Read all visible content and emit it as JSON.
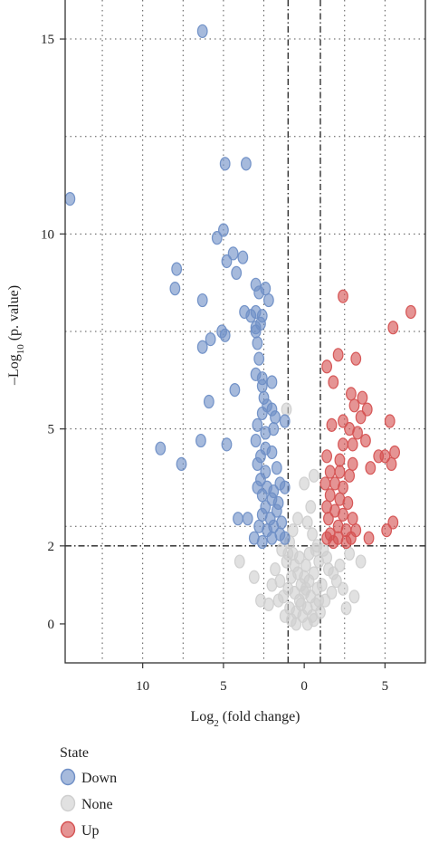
{
  "chart_data": {
    "type": "scatter",
    "title": "",
    "xlabel": {
      "prefix": "Log",
      "sub": "2",
      "suffix": " (fold change)"
    },
    "ylabel": {
      "prefix": "–Log",
      "sub": "10",
      "suffix": " (p. value)"
    },
    "x_reversed_display": true,
    "xlim": [
      -14.8,
      7.5
    ],
    "ylim": [
      -1.0,
      16.0
    ],
    "x_ticks": [
      {
        "value": -10,
        "label": "10"
      },
      {
        "value": -5,
        "label": "5"
      },
      {
        "value": 0,
        "label": "0"
      },
      {
        "value": 5,
        "label": "5"
      }
    ],
    "y_ticks": [
      {
        "value": 0,
        "label": "0"
      },
      {
        "value": 2,
        "label": "2"
      },
      {
        "value": 5,
        "label": "5"
      },
      {
        "value": 10,
        "label": "10"
      },
      {
        "value": 15,
        "label": "15"
      }
    ],
    "grid": true,
    "grid_style": "dotted",
    "thresholds": {
      "x": [
        -1,
        1
      ],
      "y": 2,
      "style": "dash-dot"
    },
    "legend": {
      "title": "State",
      "placement": "bottom-left",
      "entries": [
        {
          "label": "Down",
          "color": "#6f8fc6"
        },
        {
          "label": "None",
          "color": "#cfcfcf"
        },
        {
          "label": "Up",
          "color": "#d55252"
        }
      ]
    },
    "series": [
      {
        "name": "Down",
        "color": "#6f8fc6",
        "points": [
          [
            -14.5,
            10.9
          ],
          [
            -6.3,
            15.2
          ],
          [
            -4.9,
            11.8
          ],
          [
            -3.6,
            11.8
          ],
          [
            -5.0,
            10.1
          ],
          [
            -5.4,
            9.9
          ],
          [
            -4.8,
            9.3
          ],
          [
            -4.4,
            9.5
          ],
          [
            -4.2,
            9.0
          ],
          [
            -3.8,
            9.4
          ],
          [
            -7.9,
            9.1
          ],
          [
            -8.0,
            8.6
          ],
          [
            -6.3,
            8.3
          ],
          [
            -3.0,
            8.7
          ],
          [
            -2.8,
            8.5
          ],
          [
            -2.4,
            8.6
          ],
          [
            -2.2,
            8.3
          ],
          [
            -3.0,
            8.0
          ],
          [
            -2.6,
            7.9
          ],
          [
            -3.3,
            7.9
          ],
          [
            -3.7,
            8.0
          ],
          [
            -2.7,
            7.7
          ],
          [
            -3.0,
            7.6
          ],
          [
            -5.1,
            7.5
          ],
          [
            -4.9,
            7.4
          ],
          [
            -5.8,
            7.3
          ],
          [
            -6.3,
            7.1
          ],
          [
            -3.0,
            7.5
          ],
          [
            -2.9,
            7.2
          ],
          [
            -2.8,
            6.8
          ],
          [
            -3.0,
            6.4
          ],
          [
            -2.6,
            6.3
          ],
          [
            -2.6,
            6.1
          ],
          [
            -4.3,
            6.0
          ],
          [
            -2.0,
            6.2
          ],
          [
            -5.9,
            5.7
          ],
          [
            -2.5,
            5.8
          ],
          [
            -2.3,
            5.6
          ],
          [
            -2.6,
            5.4
          ],
          [
            -2.0,
            5.5
          ],
          [
            -1.8,
            5.3
          ],
          [
            -1.2,
            5.2
          ],
          [
            -2.9,
            5.1
          ],
          [
            -2.4,
            4.9
          ],
          [
            -1.9,
            5.0
          ],
          [
            -3.0,
            4.7
          ],
          [
            -4.8,
            4.6
          ],
          [
            -6.4,
            4.7
          ],
          [
            -8.9,
            4.5
          ],
          [
            -2.4,
            4.5
          ],
          [
            -2.0,
            4.4
          ],
          [
            -2.7,
            4.3
          ],
          [
            -2.9,
            4.1
          ],
          [
            -2.4,
            3.9
          ],
          [
            -7.6,
            4.1
          ],
          [
            -1.7,
            4.0
          ],
          [
            -2.7,
            3.7
          ],
          [
            -1.5,
            3.6
          ],
          [
            -2.9,
            3.5
          ],
          [
            -2.3,
            3.5
          ],
          [
            -1.9,
            3.4
          ],
          [
            -2.6,
            3.3
          ],
          [
            -2.0,
            3.2
          ],
          [
            -1.6,
            3.1
          ],
          [
            -1.2,
            3.5
          ],
          [
            -2.4,
            3.0
          ],
          [
            -3.5,
            2.7
          ],
          [
            -2.6,
            2.8
          ],
          [
            -2.1,
            2.7
          ],
          [
            -1.7,
            2.9
          ],
          [
            -4.1,
            2.7
          ],
          [
            -2.8,
            2.5
          ],
          [
            -2.3,
            2.4
          ],
          [
            -1.9,
            2.5
          ],
          [
            -1.4,
            2.6
          ],
          [
            -3.1,
            2.2
          ],
          [
            -2.6,
            2.1
          ],
          [
            -2.0,
            2.2
          ],
          [
            -1.5,
            2.3
          ],
          [
            -1.2,
            2.2
          ]
        ]
      },
      {
        "name": "None",
        "color": "#cfcfcf",
        "points": [
          [
            -1.1,
            5.5
          ],
          [
            0.6,
            3.8
          ],
          [
            0.0,
            3.6
          ],
          [
            0.4,
            3.0
          ],
          [
            -0.4,
            2.7
          ],
          [
            0.2,
            2.6
          ],
          [
            -0.7,
            2.4
          ],
          [
            0.5,
            2.3
          ],
          [
            -0.9,
            2.1
          ],
          [
            0.8,
            2.0
          ],
          [
            -4.0,
            1.6
          ],
          [
            -3.1,
            1.2
          ],
          [
            -2.7,
            0.6
          ],
          [
            -2.2,
            0.5
          ],
          [
            -1.8,
            1.4
          ],
          [
            -1.5,
            1.1
          ],
          [
            -1.3,
            0.7
          ],
          [
            -1.1,
            1.6
          ],
          [
            -1.0,
            0.9
          ],
          [
            -0.9,
            0.4
          ],
          [
            -0.8,
            1.2
          ],
          [
            -0.7,
            1.8
          ],
          [
            -0.6,
            0.8
          ],
          [
            -0.5,
            0.3
          ],
          [
            -0.4,
            1.3
          ],
          [
            -0.3,
            0.6
          ],
          [
            -0.2,
            1.0
          ],
          [
            -0.1,
            0.2
          ],
          [
            0.0,
            0.8
          ],
          [
            0.1,
            1.5
          ],
          [
            0.2,
            0.4
          ],
          [
            0.3,
            1.1
          ],
          [
            0.4,
            0.7
          ],
          [
            0.5,
            0.2
          ],
          [
            0.6,
            1.3
          ],
          [
            0.7,
            0.5
          ],
          [
            0.8,
            0.9
          ],
          [
            0.9,
            1.6
          ],
          [
            1.0,
            0.3
          ],
          [
            1.1,
            1.0
          ],
          [
            1.3,
            0.6
          ],
          [
            1.5,
            1.4
          ],
          [
            1.7,
            0.8
          ],
          [
            2.0,
            1.1
          ],
          [
            2.4,
            0.9
          ],
          [
            2.8,
            1.8
          ],
          [
            3.1,
            0.7
          ],
          [
            3.5,
            1.6
          ],
          [
            2.2,
            1.5
          ],
          [
            1.2,
            1.9
          ],
          [
            -1.2,
            0.2
          ],
          [
            -0.6,
            1.5
          ],
          [
            0.0,
            1.2
          ],
          [
            0.3,
            1.8
          ],
          [
            -0.2,
            0.5
          ],
          [
            0.6,
            0.1
          ],
          [
            -0.8,
            0.1
          ],
          [
            1.4,
            1.7
          ],
          [
            -1.6,
            0.6
          ],
          [
            0.9,
            0.6
          ],
          [
            -0.3,
            1.7
          ],
          [
            0.2,
            0.0
          ],
          [
            -0.5,
            0.0
          ],
          [
            0.7,
            1.9
          ],
          [
            -1.0,
            1.8
          ],
          [
            1.8,
            1.3
          ],
          [
            -2.0,
            1.0
          ],
          [
            2.6,
            0.4
          ],
          [
            -1.4,
            1.9
          ],
          [
            0.1,
            0.9
          ]
        ]
      },
      {
        "name": "Up",
        "color": "#d55252",
        "points": [
          [
            6.6,
            8.0
          ],
          [
            5.5,
            7.6
          ],
          [
            2.4,
            8.4
          ],
          [
            3.2,
            6.8
          ],
          [
            2.1,
            6.9
          ],
          [
            1.4,
            6.6
          ],
          [
            1.8,
            6.2
          ],
          [
            2.9,
            5.9
          ],
          [
            3.6,
            5.8
          ],
          [
            3.1,
            5.6
          ],
          [
            3.5,
            5.3
          ],
          [
            3.9,
            5.5
          ],
          [
            5.3,
            5.2
          ],
          [
            1.7,
            5.1
          ],
          [
            2.4,
            5.2
          ],
          [
            2.8,
            5.0
          ],
          [
            3.3,
            4.9
          ],
          [
            2.4,
            4.6
          ],
          [
            3.0,
            4.6
          ],
          [
            3.8,
            4.7
          ],
          [
            4.6,
            4.3
          ],
          [
            5.0,
            4.3
          ],
          [
            5.6,
            4.4
          ],
          [
            5.4,
            4.1
          ],
          [
            1.4,
            4.3
          ],
          [
            2.2,
            4.2
          ],
          [
            3.0,
            4.1
          ],
          [
            4.1,
            4.0
          ],
          [
            1.6,
            3.9
          ],
          [
            2.2,
            3.9
          ],
          [
            2.8,
            3.8
          ],
          [
            1.3,
            3.6
          ],
          [
            1.9,
            3.6
          ],
          [
            2.4,
            3.5
          ],
          [
            1.6,
            3.3
          ],
          [
            2.2,
            3.2
          ],
          [
            1.4,
            3.0
          ],
          [
            2.7,
            3.1
          ],
          [
            1.9,
            2.9
          ],
          [
            2.4,
            2.8
          ],
          [
            3.0,
            2.7
          ],
          [
            1.5,
            2.7
          ],
          [
            2.1,
            2.5
          ],
          [
            2.6,
            2.4
          ],
          [
            3.2,
            2.4
          ],
          [
            1.6,
            2.3
          ],
          [
            2.1,
            2.2
          ],
          [
            1.4,
            2.2
          ],
          [
            5.5,
            2.6
          ],
          [
            5.1,
            2.4
          ],
          [
            4.0,
            2.2
          ],
          [
            2.9,
            2.2
          ],
          [
            2.6,
            2.1
          ],
          [
            1.8,
            2.1
          ]
        ]
      }
    ]
  }
}
